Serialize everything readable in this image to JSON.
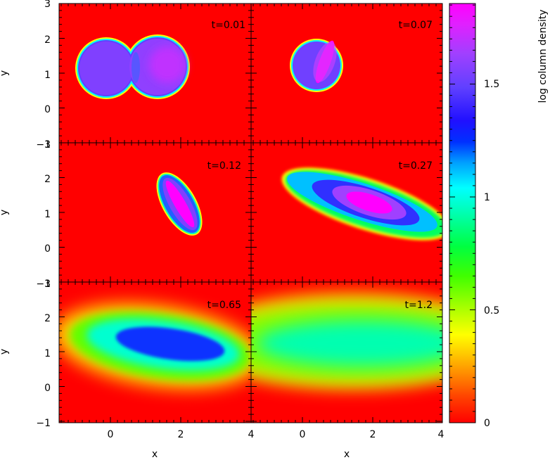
{
  "panel_labels": [
    "t=0.01",
    "t=0.07",
    "t=0.12",
    "t=0.27",
    "t=0.65",
    "t=1.2"
  ],
  "axis": {
    "xlabel": "x",
    "ylabel": "y",
    "x_ticks": [
      "0",
      "2",
      "4"
    ],
    "y_ticks": [
      "−1",
      "0",
      "1",
      "2",
      "3"
    ]
  },
  "colorbar": {
    "label": "log column density",
    "ticks": [
      "0",
      "0.5",
      "1",
      "1.5"
    ]
  },
  "colors": {
    "background": "#ff0000",
    "scale": [
      "#ff0000",
      "#ff6000",
      "#ffc000",
      "#ffff00",
      "#80ff00",
      "#00ff00",
      "#00ff80",
      "#00ffff",
      "#0080ff",
      "#0000ff",
      "#6040ff",
      "#a040ff",
      "#d040ff",
      "#ff00ff"
    ]
  }
}
